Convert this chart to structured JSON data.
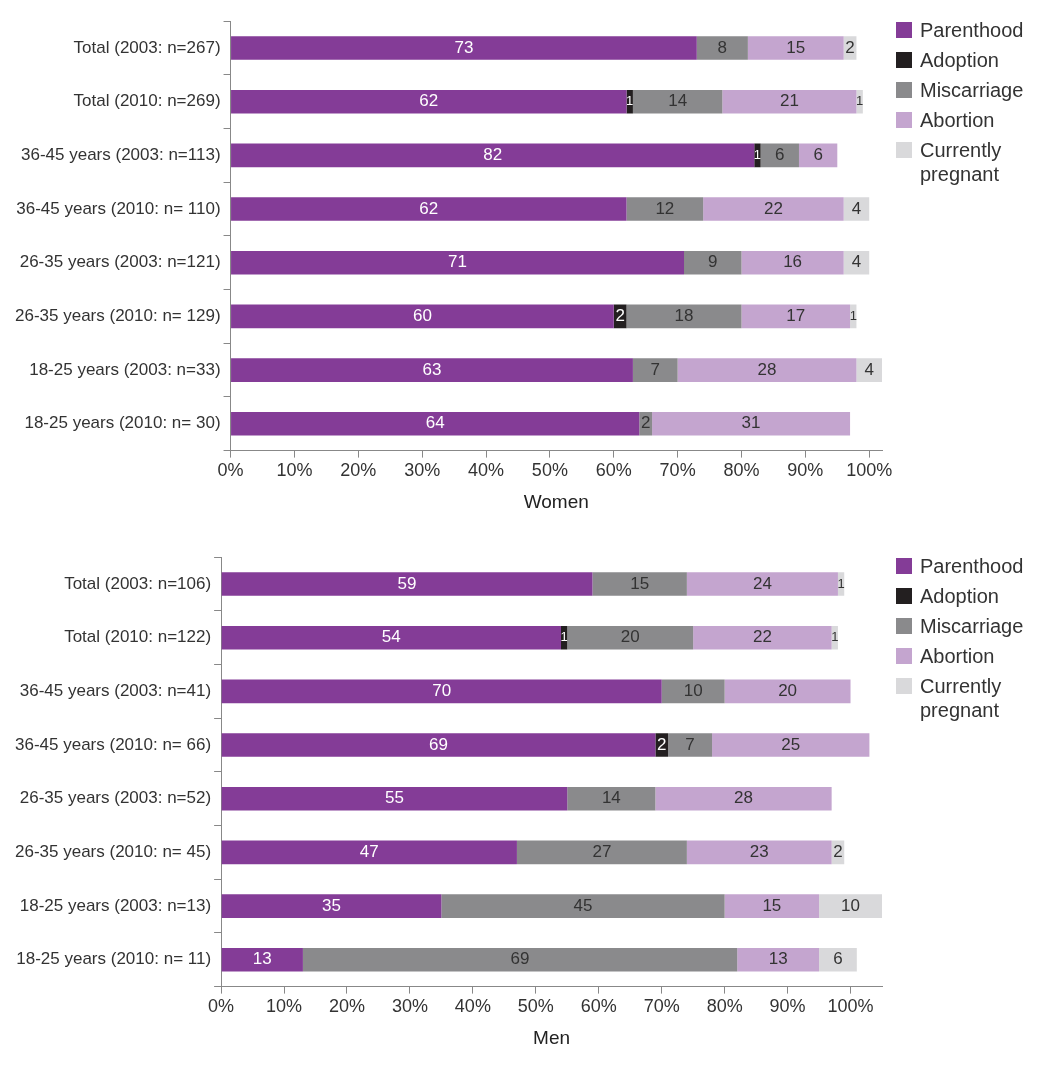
{
  "chart_data": [
    {
      "type": "bar",
      "orientation": "horizontal",
      "stacked": true,
      "data_labels": true,
      "xlabel": "Women",
      "categories": [
        "Total (2003: n=267)",
        "Total (2010: n=269)",
        "36-45 years (2003: n=113)",
        "36-45 years (2010: n= 110)",
        "26-35 years (2003: n=121)",
        "26-35 years (2010: n= 129)",
        "18-25 years (2003: n=33)",
        "18-25 years (2010: n= 30)"
      ],
      "xlim": [
        0,
        102
      ],
      "xticks": [
        {
          "value": 0,
          "label": "0%"
        },
        {
          "value": 10,
          "label": "10%"
        },
        {
          "value": 20,
          "label": "20%"
        },
        {
          "value": 30,
          "label": "30%"
        },
        {
          "value": 40,
          "label": "40%"
        },
        {
          "value": 50,
          "label": "50%"
        },
        {
          "value": 60,
          "label": "60%"
        },
        {
          "value": 70,
          "label": "70%"
        },
        {
          "value": 80,
          "label": "80%"
        },
        {
          "value": 90,
          "label": "90%"
        },
        {
          "value": 100,
          "label": "100%"
        }
      ],
      "grid": false,
      "legend": "right",
      "series": [
        {
          "name": "Parenthood",
          "color": "#843c97",
          "values": [
            73,
            62,
            82,
            62,
            71,
            60,
            63,
            64
          ]
        },
        {
          "name": "Adoption",
          "color": "#231f20",
          "values": [
            null,
            1,
            1,
            null,
            null,
            2,
            null,
            null
          ]
        },
        {
          "name": "Miscarriage",
          "color": "#8a8a8c",
          "values": [
            8,
            14,
            6,
            12,
            9,
            18,
            7,
            2
          ]
        },
        {
          "name": "Abortion",
          "color": "#c4a5cf",
          "values": [
            15,
            21,
            6,
            22,
            16,
            17,
            28,
            31
          ]
        },
        {
          "name": "Currently pregnant",
          "color": "#d9d9db",
          "values": [
            2,
            1,
            null,
            4,
            4,
            1,
            4,
            null
          ]
        }
      ]
    },
    {
      "type": "bar",
      "orientation": "horizontal",
      "stacked": true,
      "data_labels": true,
      "xlabel": "Men",
      "categories": [
        "Total (2003: n=106)",
        "Total (2010: n=122)",
        "36-45 years (2003: n=41)",
        "36-45 years (2010: n= 66)",
        "26-35 years (2003: n=52)",
        "26-35 years (2010: n= 45)",
        "18-25 years (2003: n=13)",
        "18-25 years (2010: n= 11)"
      ],
      "xlim": [
        0,
        105
      ],
      "xticks": [
        {
          "value": 0,
          "label": "0%"
        },
        {
          "value": 10,
          "label": "10%"
        },
        {
          "value": 20,
          "label": "20%"
        },
        {
          "value": 30,
          "label": "30%"
        },
        {
          "value": 40,
          "label": "40%"
        },
        {
          "value": 50,
          "label": "50%"
        },
        {
          "value": 60,
          "label": "60%"
        },
        {
          "value": 70,
          "label": "70%"
        },
        {
          "value": 80,
          "label": "80%"
        },
        {
          "value": 90,
          "label": "90%"
        },
        {
          "value": 100,
          "label": "100%"
        }
      ],
      "grid": false,
      "legend": "right",
      "series": [
        {
          "name": "Parenthood",
          "color": "#843c97",
          "values": [
            59,
            54,
            70,
            69,
            55,
            47,
            35,
            13
          ]
        },
        {
          "name": "Adoption",
          "color": "#231f20",
          "values": [
            null,
            1,
            null,
            2,
            null,
            null,
            null,
            null
          ]
        },
        {
          "name": "Miscarriage",
          "color": "#8a8a8c",
          "values": [
            15,
            20,
            10,
            7,
            14,
            27,
            45,
            69
          ]
        },
        {
          "name": "Abortion",
          "color": "#c4a5cf",
          "values": [
            24,
            22,
            20,
            25,
            28,
            23,
            15,
            13
          ]
        },
        {
          "name": "Currently pregnant",
          "color": "#d9d9db",
          "values": [
            1,
            1,
            null,
            null,
            null,
            2,
            10,
            6
          ]
        }
      ]
    }
  ]
}
